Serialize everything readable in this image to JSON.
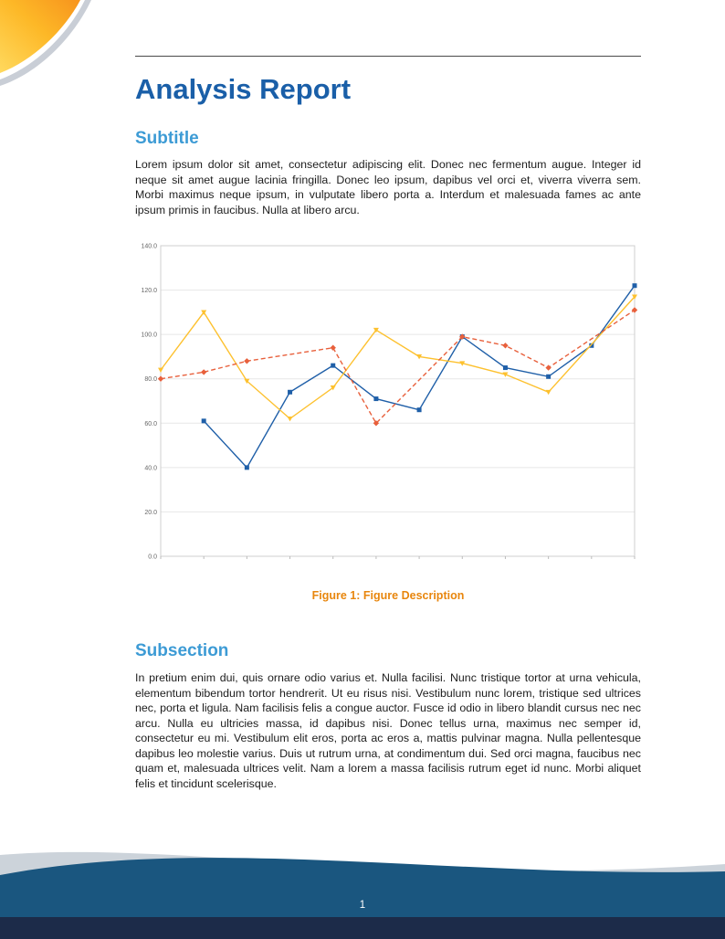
{
  "header": {
    "title": "Analysis Report"
  },
  "sections": [
    {
      "heading": "Subtitle",
      "body": "Lorem ipsum dolor sit amet, consectetur adipiscing elit. Donec nec fermentum augue. Integer id neque sit amet augue lacinia fringilla. Donec leo ipsum, dapibus vel orci et, viverra viverra sem. Morbi maximus neque ipsum, in vulputate libero porta a. Interdum et malesuada fames ac ante ipsum primis in faucibus. Nulla at libero arcu."
    },
    {
      "heading": "Subsection",
      "body": "In pretium enim dui, quis ornare odio varius et. Nulla facilisi. Nunc tristique tortor at urna vehicula, elementum bibendum tortor hendrerit. Ut eu risus nisi. Vestibulum nunc lorem, tristique sed ultrices nec, porta et ligula. Nam facilisis felis a congue auctor. Fusce id odio in libero blandit cursus nec nec arcu. Nulla eu ultricies massa, id dapibus nisi. Donec tellus urna, maximus nec semper id, consectetur eu mi. Vestibulum elit eros, porta ac eros a, mattis pulvinar magna. Nulla pellentesque dapibus leo molestie varius. Duis ut rutrum urna, at condimentum dui. Sed orci magna, faucibus nec quam et, malesuada ultrices velit. Nam a lorem a massa facilisis rutrum eget id nunc. Morbi aliquet felis et tincidunt scelerisque."
    }
  ],
  "figure": {
    "caption_label": "Figure 1:",
    "caption_text": "Figure Description"
  },
  "footer": {
    "page_number": "1"
  },
  "colors": {
    "title_blue": "#1a5fa8",
    "heading_blue": "#3d9bd5",
    "caption_orange": "#e8860d",
    "wave_blue": "#1a567f",
    "strip_navy": "#1c2b49",
    "corner_orange": "#f7941d",
    "corner_yellow": "#ffd95e"
  },
  "chart_data": {
    "type": "line",
    "title": "",
    "xlabel": "",
    "ylabel": "",
    "xlim": [
      0,
      11
    ],
    "ylim": [
      0,
      140
    ],
    "ytick_labels": [
      "0.0",
      "20.0",
      "40.0",
      "60.0",
      "80.0",
      "100.0",
      "120.0",
      "140.0"
    ],
    "grid": true,
    "legend_position": "none",
    "series": [
      {
        "name": "series-blue",
        "color": "#1f5fa8",
        "line_style": "solid",
        "marker": "square",
        "x": [
          1,
          2,
          3,
          4,
          5,
          6,
          7,
          8,
          9,
          10,
          11
        ],
        "y": [
          61,
          40,
          74,
          86,
          71,
          66,
          99,
          85,
          81,
          95,
          122
        ]
      },
      {
        "name": "series-yellow",
        "color": "#fdc12f",
        "line_style": "solid",
        "marker": "triangle",
        "x": [
          0,
          1,
          2,
          3,
          4,
          5,
          6,
          7,
          8,
          9,
          11
        ],
        "y": [
          84,
          110,
          79,
          62,
          76,
          102,
          90,
          87,
          82,
          74,
          117
        ]
      },
      {
        "name": "series-red-dashed",
        "color": "#e8603c",
        "line_style": "dashed",
        "marker": "diamond",
        "x": [
          0,
          1,
          2,
          4,
          5,
          7,
          8,
          9,
          11
        ],
        "y": [
          80,
          83,
          88,
          94,
          60,
          99,
          95,
          85,
          111
        ]
      }
    ]
  }
}
